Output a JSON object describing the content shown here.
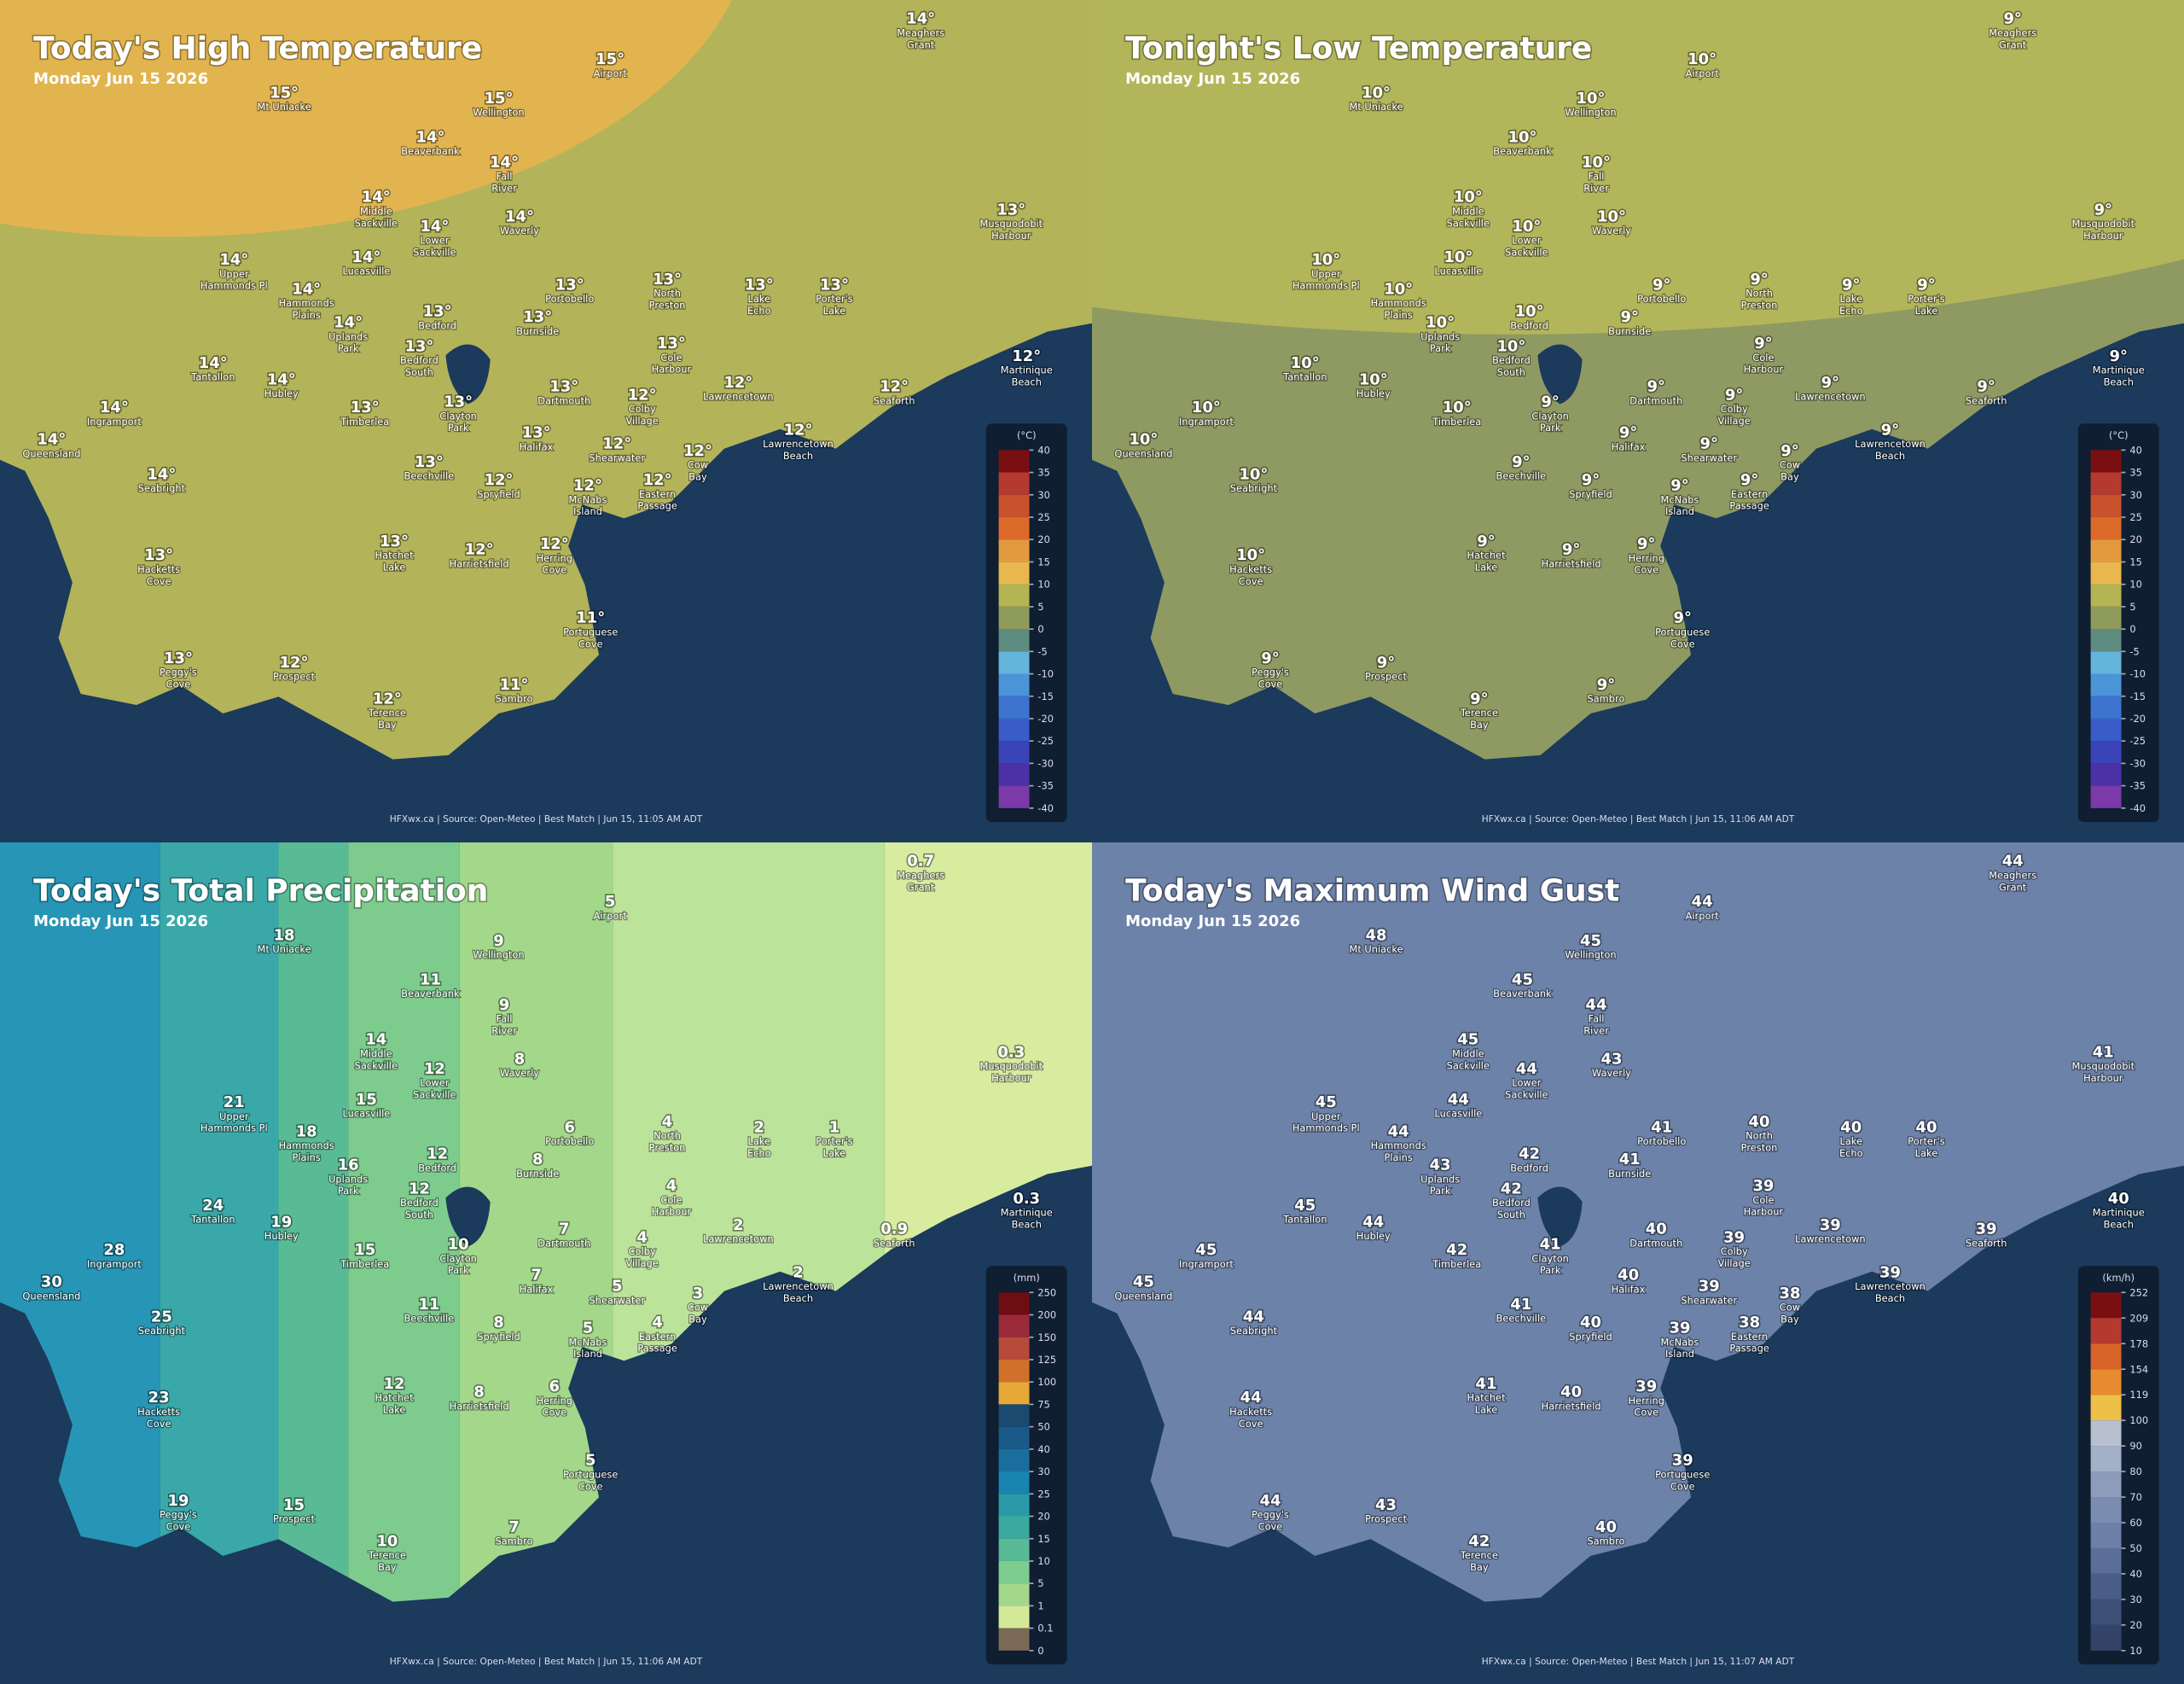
{
  "places": [
    [
      "Meaghers",
      "Grant"
    ],
    [
      "Airport"
    ],
    [
      "Mt Uniacke"
    ],
    [
      "Wellington"
    ],
    [
      "Beaverbank"
    ],
    [
      "Fall",
      "River"
    ],
    [
      "Middle",
      "Sackville"
    ],
    [
      "Lower",
      "Sackville"
    ],
    [
      "Waverly"
    ],
    [
      "Musquodobit",
      "Harbour"
    ],
    [
      "Lucasville"
    ],
    [
      "Upper",
      "Hammonds Pl"
    ],
    [
      "Hammonds",
      "Plains"
    ],
    [
      "Portobello"
    ],
    [
      "North",
      "Preston"
    ],
    [
      "Lake",
      "Echo"
    ],
    [
      "Porter's",
      "Lake"
    ],
    [
      "Bedford"
    ],
    [
      "Uplands",
      "Park"
    ],
    [
      "Burnside"
    ],
    [
      "Bedford",
      "South"
    ],
    [
      "Cole",
      "Harbour"
    ],
    [
      "Tantallon"
    ],
    [
      "Martinique",
      "Beach"
    ],
    [
      "Hubley"
    ],
    [
      "Lawrencetown"
    ],
    [
      "Dartmouth"
    ],
    [
      "Colby",
      "Village"
    ],
    [
      "Seaforth"
    ],
    [
      "Ingramport"
    ],
    [
      "Timberlea"
    ],
    [
      "Clayton",
      "Park"
    ],
    [
      "Queensland"
    ],
    [
      "Halifax"
    ],
    [
      "Shearwater"
    ],
    [
      "Lawrencetown",
      "Beach"
    ],
    [
      "Cow",
      "Bay"
    ],
    [
      "Beechville"
    ],
    [
      "Seabright"
    ],
    [
      "Spryfield"
    ],
    [
      "McNabs",
      "Island"
    ],
    [
      "Eastern",
      "Passage"
    ],
    [
      "Hatchet",
      "Lake"
    ],
    [
      "Harrietsfield"
    ],
    [
      "Herring",
      "Cove"
    ],
    [
      "Hacketts",
      "Cove"
    ],
    [
      "Portuguese",
      "Cove"
    ],
    [
      "Peggy's",
      "Cove"
    ],
    [
      "Prospect"
    ],
    [
      "Sambro"
    ],
    [
      "Terence",
      "Bay"
    ]
  ],
  "panels": [
    {
      "title": "Today's High Temperature",
      "subtitle": "Monday Jun 15 2026",
      "legend_unit": "(°C)",
      "legend_labels": [
        40,
        35,
        30,
        25,
        20,
        15,
        10,
        5,
        0,
        -5,
        -10,
        -15,
        -20,
        -25,
        -30,
        -35,
        -40
      ],
      "legend_colors": [
        "#7a0f12",
        "#b43a30",
        "#c9522c",
        "#dc6a2a",
        "#e39a3e",
        "#e8b84e",
        "#b4b552",
        "#8e9b5c",
        "#5f8c80",
        "#64b4dc",
        "#4c94d8",
        "#3c74d0",
        "#3a5cc8",
        "#3a44b8",
        "#4a32a6",
        "#7a3aa8",
        "#b43cd4"
      ],
      "footer": "HFXwx.ca | Source: Open-Meteo | Best Match | Jun 15, 11:05 AM ADT",
      "values": [
        "14°",
        "15°",
        "15°",
        "15°",
        "14°",
        "14°",
        "14°",
        "14°",
        "14°",
        "13°",
        "14°",
        "14°",
        "14°",
        "13°",
        "13°",
        "13°",
        "13°",
        "13°",
        "14°",
        "13°",
        "13°",
        "13°",
        "14°",
        "12°",
        "14°",
        "12°",
        "13°",
        "12°",
        "12°",
        "14°",
        "13°",
        "13°",
        "14°",
        "13°",
        "12°",
        "12°",
        "12°",
        "13°",
        "14°",
        "12°",
        "12°",
        "12°",
        "13°",
        "12°",
        "12°",
        "13°",
        "11°",
        "13°",
        "12°",
        "11°",
        "12°"
      ]
    },
    {
      "title": "Tonight's Low Temperature",
      "subtitle": "Monday Jun 15 2026",
      "legend_unit": "(°C)",
      "legend_labels": [
        40,
        35,
        30,
        25,
        20,
        15,
        10,
        5,
        0,
        -5,
        -10,
        -15,
        -20,
        -25,
        -30,
        -35,
        -40
      ],
      "legend_colors": [
        "#7a0f12",
        "#b43a30",
        "#c9522c",
        "#dc6a2a",
        "#e39a3e",
        "#e8b84e",
        "#b4b552",
        "#8e9b5c",
        "#5f8c80",
        "#64b4dc",
        "#4c94d8",
        "#3c74d0",
        "#3a5cc8",
        "#3a44b8",
        "#4a32a6",
        "#7a3aa8",
        "#b43cd4"
      ],
      "footer": "HFXwx.ca | Source: Open-Meteo | Best Match | Jun 15, 11:06 AM ADT",
      "values": [
        "9°",
        "10°",
        "10°",
        "10°",
        "10°",
        "10°",
        "10°",
        "10°",
        "10°",
        "9°",
        "10°",
        "10°",
        "10°",
        "9°",
        "9°",
        "9°",
        "9°",
        "10°",
        "10°",
        "9°",
        "10°",
        "9°",
        "10°",
        "9°",
        "10°",
        "9°",
        "9°",
        "9°",
        "9°",
        "10°",
        "10°",
        "9°",
        "10°",
        "9°",
        "9°",
        "9°",
        "9°",
        "9°",
        "10°",
        "9°",
        "9°",
        "9°",
        "9°",
        "9°",
        "9°",
        "10°",
        "9°",
        "9°",
        "9°",
        "9°",
        "9°"
      ]
    },
    {
      "title": "Today's Total Precipitation",
      "subtitle": "Monday Jun 15 2026",
      "legend_unit": "(mm)",
      "legend_labels": [
        250,
        200,
        150,
        125,
        100,
        75,
        50,
        40,
        30,
        25,
        20,
        15,
        10,
        5,
        1,
        0.1,
        0
      ],
      "legend_colors": [
        "#6e0e12",
        "#9a2a3a",
        "#b84a3a",
        "#d0702a",
        "#e8a838",
        "#1a4a70",
        "#1a5a88",
        "#1a6e9e",
        "#1a84b0",
        "#2a9aa8",
        "#3aaaa0",
        "#58bb95",
        "#7dcc8e",
        "#a3d88b",
        "#d5ea98",
        "#7a6a55"
      ],
      "footer": "HFXwx.ca | Source: Open-Meteo | Best Match | Jun 15, 11:06 AM ADT",
      "values": [
        "0.7",
        "5",
        "18",
        "9",
        "11",
        "9",
        "14",
        "12",
        "8",
        "0.3",
        "15",
        "21",
        "18",
        "6",
        "4",
        "2",
        "1",
        "12",
        "16",
        "8",
        "12",
        "4",
        "24",
        "0.3",
        "19",
        "2",
        "7",
        "4",
        "0.9",
        "28",
        "15",
        "10",
        "30",
        "7",
        "5",
        "2",
        "3",
        "11",
        "25",
        "8",
        "5",
        "4",
        "12",
        "8",
        "6",
        "23",
        "5",
        "19",
        "15",
        "7",
        "10"
      ]
    },
    {
      "title": "Today's Maximum Wind Gust",
      "subtitle": "Monday Jun 15 2026",
      "legend_unit": "(km/h)",
      "legend_labels": [
        252,
        209,
        178,
        154,
        119,
        100,
        90,
        80,
        70,
        60,
        50,
        40,
        30,
        20,
        10
      ],
      "legend_colors": [
        "#7a0f12",
        "#b43a30",
        "#d8642a",
        "#e88a30",
        "#eec048",
        "#b8c0d0",
        "#a4b0c8",
        "#8e9cbc",
        "#7a8cb0",
        "#6c80a8",
        "#5a6e98",
        "#4a5e88",
        "#3e5078",
        "#344468"
      ],
      "footer": "HFXwx.ca | Source: Open-Meteo | Best Match | Jun 15, 11:07 AM ADT",
      "values": [
        "44",
        "44",
        "48",
        "45",
        "45",
        "44",
        "45",
        "44",
        "43",
        "41",
        "44",
        "45",
        "44",
        "41",
        "40",
        "40",
        "40",
        "42",
        "43",
        "41",
        "42",
        "39",
        "45",
        "40",
        "44",
        "39",
        "40",
        "39",
        "39",
        "45",
        "42",
        "41",
        "45",
        "40",
        "39",
        "39",
        "38",
        "41",
        "44",
        "40",
        "39",
        "38",
        "41",
        "40",
        "39",
        "44",
        "39",
        "44",
        "43",
        "40",
        "42"
      ]
    }
  ]
}
